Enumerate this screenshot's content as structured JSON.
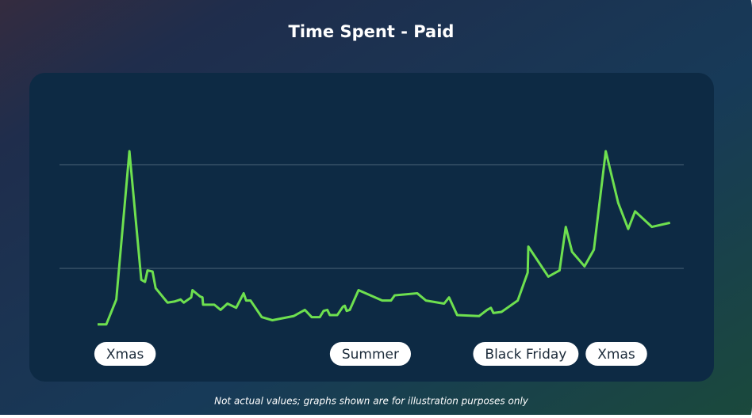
{
  "chart_data": {
    "type": "line",
    "title": "Time Spent - Paid",
    "footnote": "Not actual values; graphs shown are for illustration purposes only",
    "xlim": [
      0,
      100
    ],
    "ylim": [
      0,
      3
    ],
    "gridlines": [
      1,
      2
    ],
    "series": [
      {
        "color": "#6ee04f",
        "x": [
          6.1,
          7.5,
          9.1,
          11.2,
          13.1,
          13.7,
          14.1,
          14.9,
          15.4,
          17.3,
          18.4,
          19.4,
          19.9,
          21.1,
          21.3,
          22.5,
          22.9,
          23.0,
          24.8,
          25.8,
          26.9,
          28.3,
          29.5,
          29.9,
          30.6,
          32.4,
          34.1,
          37.5,
          39.3,
          40.4,
          41.7,
          42.3,
          42.9,
          43.3,
          44.5,
          45.4,
          45.7,
          46.0,
          46.5,
          47.9,
          51.7,
          53.1,
          53.7,
          57.3,
          58.7,
          61.6,
          62.4,
          63.7,
          67.2,
          68.5,
          69.1,
          69.5,
          70.8,
          73.4,
          75.0,
          75.1,
          78.3,
          80.1,
          81.1,
          82.1,
          84.1,
          85.6,
          87.5,
          89.5,
          91.1,
          92.2,
          94.9,
          97.8
        ],
        "values": [
          0.46,
          0.46,
          0.7,
          2.13,
          0.89,
          0.87,
          0.98,
          0.97,
          0.81,
          0.67,
          0.68,
          0.7,
          0.67,
          0.72,
          0.79,
          0.73,
          0.72,
          0.65,
          0.65,
          0.6,
          0.66,
          0.62,
          0.76,
          0.69,
          0.69,
          0.53,
          0.5,
          0.54,
          0.6,
          0.53,
          0.53,
          0.59,
          0.6,
          0.55,
          0.55,
          0.63,
          0.64,
          0.59,
          0.6,
          0.79,
          0.69,
          0.69,
          0.74,
          0.76,
          0.69,
          0.66,
          0.72,
          0.55,
          0.54,
          0.6,
          0.62,
          0.57,
          0.58,
          0.69,
          0.96,
          1.21,
          0.92,
          0.98,
          1.4,
          1.16,
          1.02,
          1.18,
          2.13,
          1.63,
          1.38,
          1.55,
          1.4,
          1.44
        ]
      }
    ],
    "annotations": [
      {
        "text": "Xmas",
        "x": 10.5
      },
      {
        "text": "Summer",
        "x": 49.8
      },
      {
        "text": "Black Friday",
        "x": 74.7
      },
      {
        "text": "Xmas",
        "x": 89.2
      }
    ]
  }
}
